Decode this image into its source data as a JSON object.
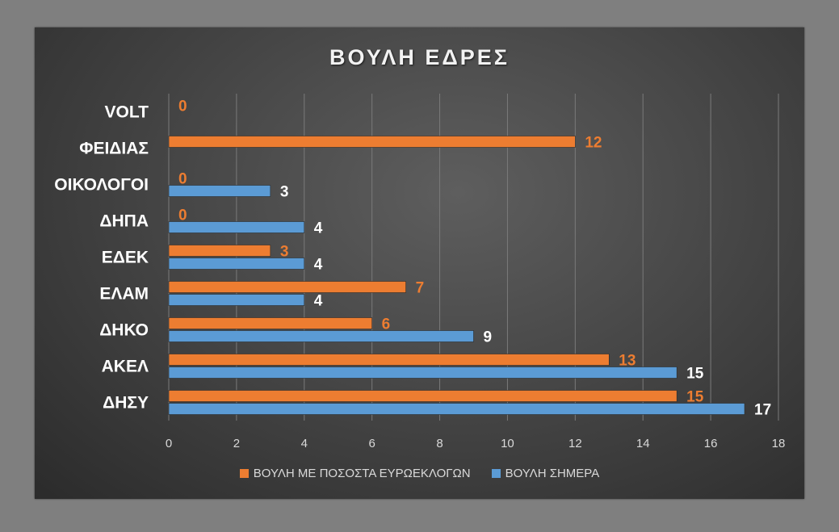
{
  "chart_data": {
    "type": "bar",
    "orientation": "horizontal",
    "title": "ΒΟΥΛΗ ΕΔΡΕΣ",
    "categories": [
      "VOLT",
      "ΦΕΙΔΙΑΣ",
      "ΟΙΚΟΛΟΓΟΙ",
      "ΔΗΠΑ",
      "ΕΔΕΚ",
      "ΕΛΑΜ",
      "ΔΗΚΟ",
      "ΑΚΕΛ",
      "ΔΗΣΥ"
    ],
    "series": [
      {
        "name": "ΒΟΥΛΗ ΜΕ ΠΟΣΟΣΤΑ ΕΥΡΩΕΚΛΟΓΩΝ",
        "color": "#ed7d31",
        "values": [
          0,
          12,
          0,
          0,
          3,
          7,
          6,
          13,
          15
        ],
        "labels": [
          "0",
          "12",
          "0",
          "0",
          "3",
          "7",
          "6",
          "13",
          "15"
        ]
      },
      {
        "name": "ΒΟΥΛΗ ΣΗΜΕΡΑ",
        "color": "#5b9bd5",
        "values": [
          0,
          0,
          3,
          4,
          4,
          4,
          9,
          15,
          17
        ],
        "labels": [
          "",
          "",
          "3",
          "4",
          "4",
          "4",
          "9",
          "15",
          "17"
        ]
      }
    ],
    "xlim": [
      0,
      18
    ],
    "xticks": [
      "0",
      "2",
      "4",
      "6",
      "8",
      "10",
      "12",
      "14",
      "16",
      "18"
    ],
    "grid": true,
    "legend_position": "bottom"
  }
}
